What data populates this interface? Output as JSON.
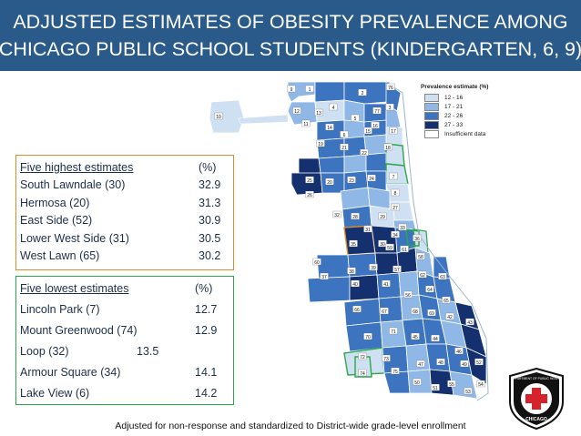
{
  "title": {
    "line1": "ADJUSTED ESTIMATES OF OBESITY PREVALENCE AMONG",
    "line2": "CHICAGO PUBLIC SCHOOL STUDENTS (KINDERGARTEN, 6, 9)"
  },
  "legend": {
    "title": "Prevalence estimate (%)",
    "items": [
      {
        "label": "12 - 16",
        "color": "#cfe0f3"
      },
      {
        "label": "17 - 21",
        "color": "#8fb8e6"
      },
      {
        "label": "22 - 26",
        "color": "#3d74c0"
      },
      {
        "label": "27 - 33",
        "color": "#14306e"
      },
      {
        "label": "Insufficient data",
        "color": "#ffffff"
      }
    ]
  },
  "highest": {
    "header": "Five highest estimates",
    "unit": "(%)",
    "rows": [
      {
        "name": "South Lawndale (30)",
        "value": "32.9"
      },
      {
        "name": "Hermosa (20)",
        "value": "31.3"
      },
      {
        "name": "East Side (52)",
        "value": "30.9"
      },
      {
        "name": "Lower West Side (31)",
        "value": "30.5"
      },
      {
        "name": "West Lawn (65)",
        "value": "30.2"
      }
    ]
  },
  "lowest": {
    "header": "Five lowest estimates",
    "unit": "(%)",
    "rows": [
      {
        "name": "Lincoln Park (7)",
        "value": "12.7"
      },
      {
        "name": "Mount Greenwood (74)",
        "value": "12.9"
      },
      {
        "name": "Loop (32)",
        "value": "13.5"
      },
      {
        "name": "Armour Square (34)",
        "value": "14.1"
      },
      {
        "name": "Lake View (6)",
        "value": "14.2"
      }
    ]
  },
  "map_labels": [
    "9",
    "1",
    "2",
    "76",
    "10",
    "12",
    "13",
    "4",
    "77",
    "3",
    "11",
    "14",
    "5",
    "16",
    "15",
    "6",
    "17",
    "18",
    "19",
    "21",
    "22",
    "7",
    "25",
    "20",
    "23",
    "24",
    "8",
    "26",
    "27",
    "28",
    "32",
    "29",
    "33",
    "31",
    "34",
    "30",
    "60",
    "35",
    "59",
    "36",
    "61",
    "58",
    "37",
    "38",
    "39",
    "57",
    "62",
    "63",
    "40",
    "41",
    "56",
    "64",
    "65",
    "66",
    "67",
    "68",
    "69",
    "42",
    "43",
    "70",
    "71",
    "45",
    "44",
    "46",
    "72",
    "73",
    "47",
    "48",
    "49",
    "52",
    "74",
    "75",
    "50",
    "51",
    "55",
    "53",
    "54"
  ],
  "badge": {
    "text_top": "DEPARTMENT OF PUBLIC HEALTH",
    "text_bottom": "CHICAGO"
  },
  "footnote": "Adjusted for non-response and standardized to District-wide grade-level enrollment"
}
